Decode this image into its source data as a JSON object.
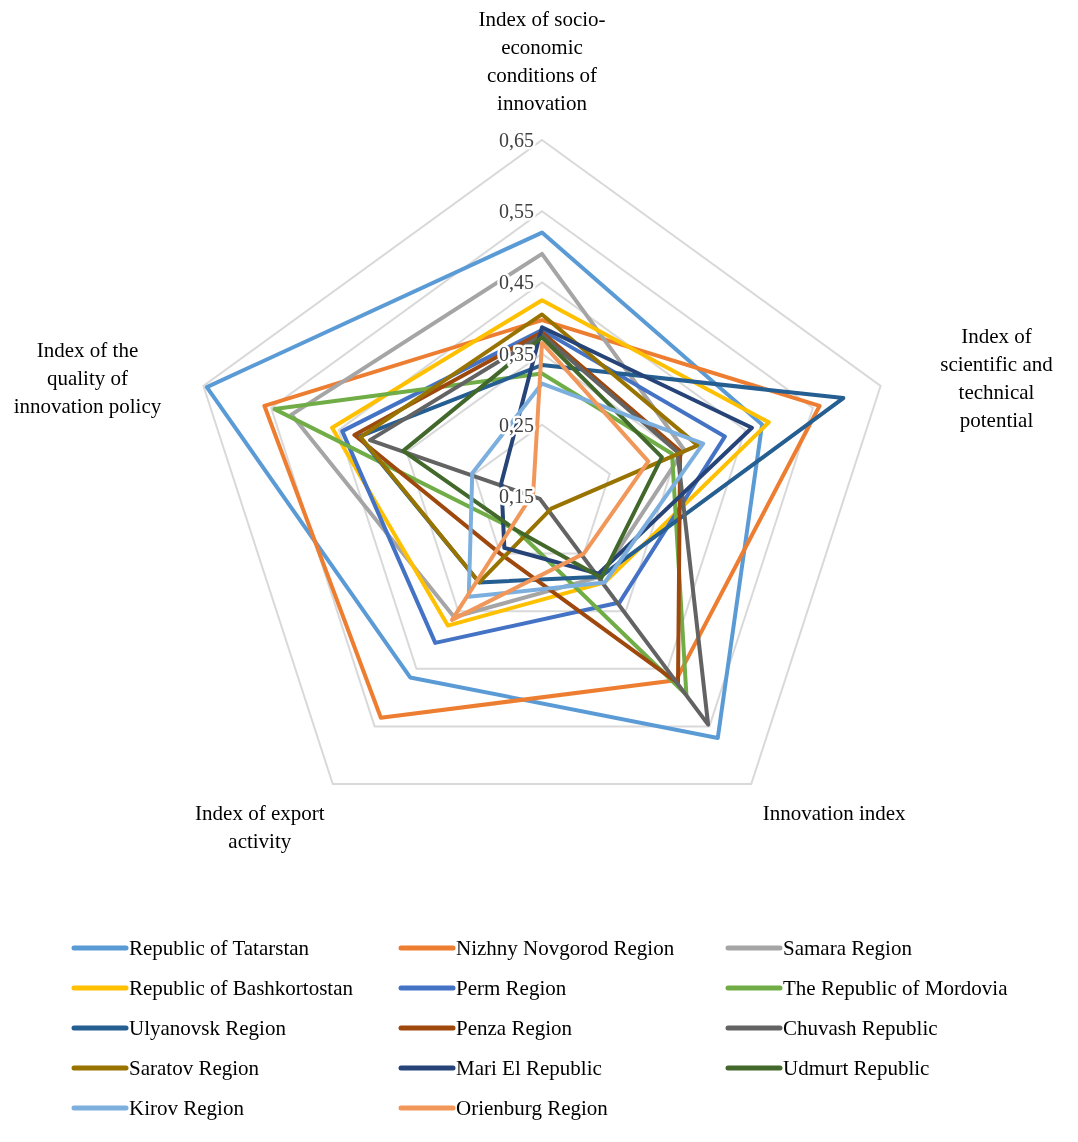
{
  "chart_data": {
    "type": "radar",
    "categories": [
      "Index of socio-economic conditions of innovation",
      "Index of scientific and technical potential",
      "Innovation index",
      "Index of export activity",
      "Index of the quality of innovation policy"
    ],
    "ylim": [
      0.15,
      0.65
    ],
    "yticks": [
      {
        "value": 0.15,
        "label": "0,15"
      },
      {
        "value": 0.25,
        "label": "0,25"
      },
      {
        "value": 0.35,
        "label": "0,35"
      },
      {
        "value": 0.45,
        "label": "0,45"
      },
      {
        "value": 0.55,
        "label": "0,55"
      },
      {
        "value": 0.65,
        "label": "0,65"
      }
    ],
    "grid": true,
    "legend": "bottom",
    "series": [
      {
        "name": "Republic of Tatarstan",
        "color": "#5b9bd5",
        "values": [
          0.52,
          0.475,
          0.57,
          0.465,
          0.645
        ]
      },
      {
        "name": "Nizhny Novgorod Region",
        "color": "#ed7d31",
        "values": [
          0.397,
          0.56,
          0.47,
          0.535,
          0.56
        ]
      },
      {
        "name": "Samara Region",
        "color": "#a5a5a5",
        "values": [
          0.49,
          0.36,
          0.29,
          0.36,
          0.52
        ]
      },
      {
        "name": "Republic of Bashkortostan",
        "color": "#ffc000",
        "values": [
          0.425,
          0.485,
          0.3,
          0.375,
          0.46
        ]
      },
      {
        "name": "Perm Region",
        "color": "#4472c4",
        "values": [
          0.383,
          0.42,
          0.335,
          0.405,
          0.445
        ]
      },
      {
        "name": "The Republic of Mordovia",
        "color": "#70ad47",
        "values": [
          0.322,
          0.342,
          0.495,
          0.21,
          0.545
        ]
      },
      {
        "name": "Ulyanovsk Region",
        "color": "#255e91",
        "values": [
          0.334,
          0.595,
          0.29,
          0.3,
          0.42
        ]
      },
      {
        "name": "Penza Region",
        "color": "#9e480e",
        "values": [
          0.38,
          0.354,
          0.475,
          0.25,
          0.427
        ]
      },
      {
        "name": "Chuvash Republic",
        "color": "#636363",
        "values": [
          0.376,
          0.35,
          0.547,
          0.155,
          0.404
        ]
      },
      {
        "name": "Saratov Region",
        "color": "#997300",
        "values": [
          0.405,
          0.38,
          0.172,
          0.3,
          0.418
        ]
      },
      {
        "name": "Mari El Republic",
        "color": "#264478",
        "values": [
          0.387,
          0.46,
          0.285,
          0.24,
          0.21
        ]
      },
      {
        "name": "Udmurt Republic",
        "color": "#43682b",
        "values": [
          0.373,
          0.327,
          0.292,
          0.21,
          0.355
        ]
      },
      {
        "name": "Kirov Region",
        "color": "#7cafdd",
        "values": [
          0.308,
          0.388,
          0.3,
          0.325,
          0.253
        ]
      },
      {
        "name": "Orienburg Region",
        "color": "#f1975a",
        "values": [
          0.365,
          0.307,
          0.25,
          0.365,
          0.163
        ]
      }
    ]
  }
}
